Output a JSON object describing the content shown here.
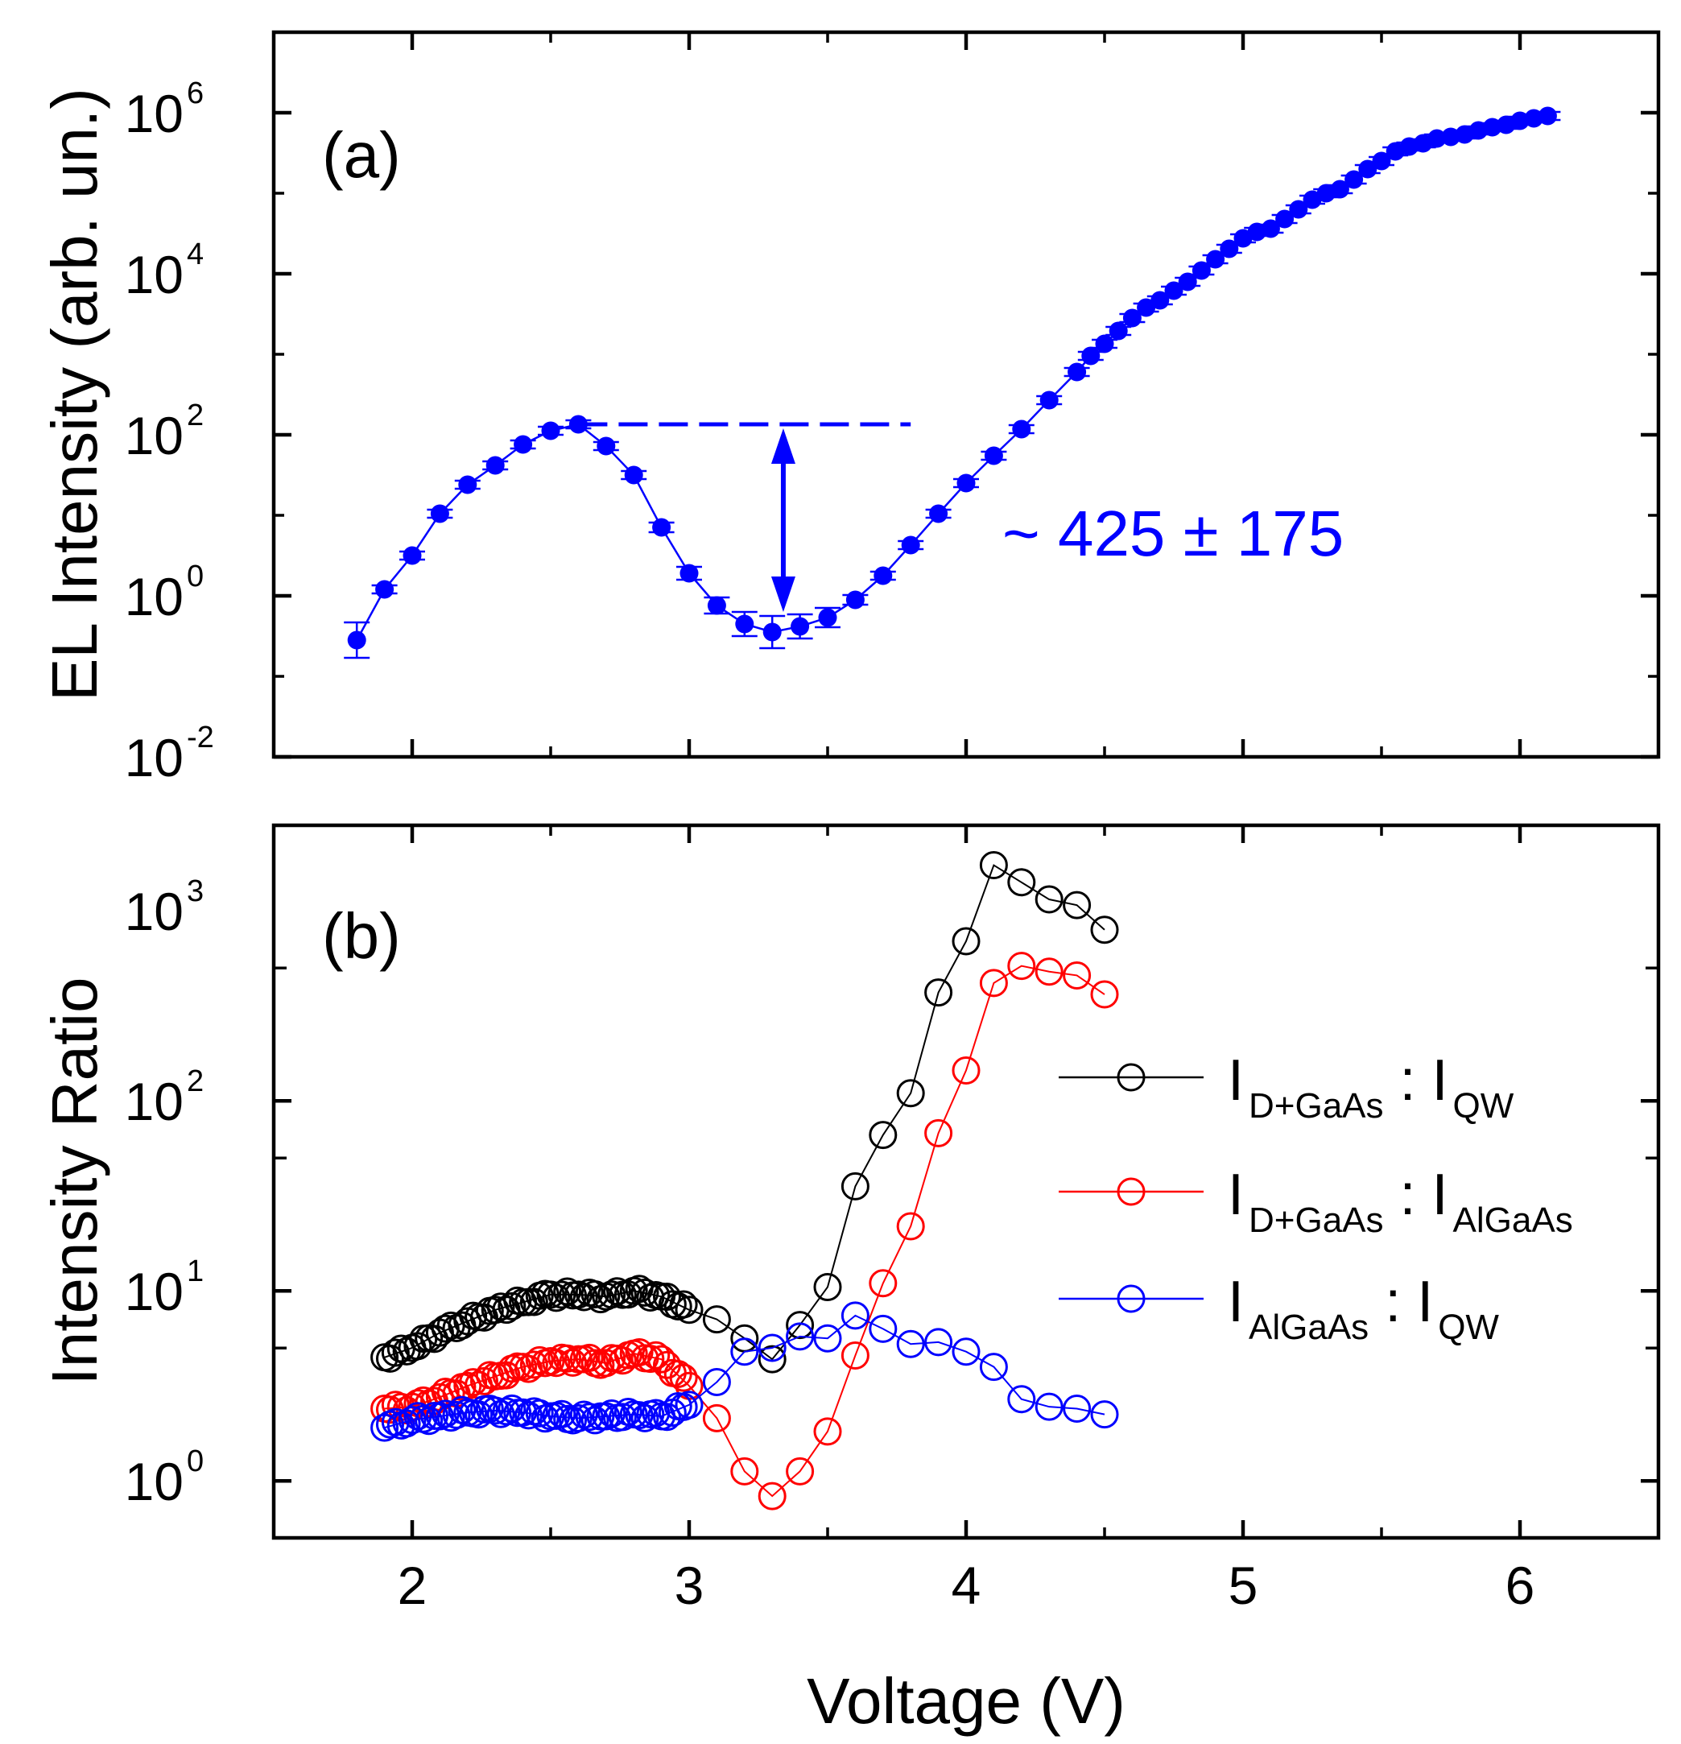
{
  "chart_data": [
    {
      "panel_label": "(a)",
      "type": "line",
      "ylabel": "EL Intensity (arb. un.)",
      "xlabel": "",
      "xlim": [
        1.5,
        6.5
      ],
      "ylim_log10": [
        -2,
        7
      ],
      "yscale": "log",
      "x_ticks": [
        2,
        3,
        4,
        5,
        6
      ],
      "y_ticks": [
        {
          "base": "10",
          "exp": "6",
          "value": 6
        },
        {
          "base": "10",
          "exp": "4",
          "value": 4
        },
        {
          "base": "10",
          "exp": "2",
          "value": 2
        },
        {
          "base": "10",
          "exp": "0",
          "value": 0
        },
        {
          "base": "10",
          "exp": "-2",
          "value": -2
        }
      ],
      "color": "#0000ff",
      "annotation_text": "~ 425 ± 175",
      "reference_line": {
        "x_start": 2.6,
        "x_end": 3.8,
        "log_y": 2.13
      },
      "arrow": {
        "x": 3.34,
        "log_y_top": 2.08,
        "log_y_bottom": -0.2
      },
      "series": [
        {
          "name": "EL",
          "x": [
            1.8,
            1.9,
            2.0,
            2.1,
            2.2,
            2.3,
            2.4,
            2.5,
            2.6,
            2.7,
            2.8,
            2.9,
            3.0,
            3.1,
            3.2,
            3.3,
            3.4,
            3.5,
            3.6,
            3.7,
            3.8,
            3.9,
            4.0,
            4.1,
            4.2,
            4.3,
            4.4,
            4.45,
            4.5,
            4.55,
            4.6,
            4.65,
            4.7,
            4.75,
            4.8,
            4.85,
            4.9,
            4.95,
            5.0,
            5.05,
            5.1,
            5.15,
            5.2,
            5.25,
            5.3,
            5.35,
            5.4,
            5.45,
            5.5,
            5.55,
            5.6,
            5.65,
            5.7,
            5.75,
            5.8,
            5.85,
            5.9,
            5.95,
            6.0,
            6.05,
            6.1
          ],
          "log10_y": [
            -0.55,
            0.08,
            0.5,
            1.02,
            1.38,
            1.62,
            1.88,
            2.05,
            2.13,
            1.86,
            1.5,
            0.85,
            0.28,
            -0.12,
            -0.35,
            -0.45,
            -0.38,
            -0.27,
            -0.05,
            0.25,
            0.63,
            1.02,
            1.4,
            1.74,
            2.07,
            2.43,
            2.78,
            2.98,
            3.13,
            3.29,
            3.45,
            3.58,
            3.67,
            3.79,
            3.9,
            4.04,
            4.18,
            4.31,
            4.44,
            4.52,
            4.56,
            4.68,
            4.8,
            4.92,
            5.0,
            5.05,
            5.17,
            5.3,
            5.4,
            5.52,
            5.58,
            5.62,
            5.68,
            5.7,
            5.73,
            5.78,
            5.82,
            5.85,
            5.9,
            5.93,
            5.96
          ],
          "log10_err": [
            0.22,
            0.05,
            0.05,
            0.05,
            0.05,
            0.05,
            0.05,
            0.05,
            0.05,
            0.05,
            0.05,
            0.06,
            0.08,
            0.1,
            0.15,
            0.2,
            0.15,
            0.12,
            0.06,
            0.05,
            0.05,
            0.05,
            0.05,
            0.05,
            0.05,
            0.05,
            0.05,
            0.05,
            0.05,
            0.05,
            0.05,
            0.05,
            0.05,
            0.05,
            0.05,
            0.05,
            0.05,
            0.05,
            0.05,
            0.05,
            0.05,
            0.05,
            0.05,
            0.05,
            0.05,
            0.05,
            0.05,
            0.05,
            0.05,
            0.05,
            0.05,
            0.05,
            0.05,
            0.05,
            0.05,
            0.05,
            0.05,
            0.05,
            0.05,
            0.05,
            0.05
          ]
        }
      ]
    },
    {
      "panel_label": "(b)",
      "type": "line",
      "ylabel": "Intensity Ratio",
      "xlabel": "Voltage (V)",
      "xlim": [
        1.5,
        6.5
      ],
      "ylim_log10": [
        -0.3,
        3.45
      ],
      "yscale": "log",
      "x_ticks": [
        2,
        3,
        4,
        5,
        6
      ],
      "x_tick_labels": [
        "2",
        "3",
        "4",
        "5",
        "6"
      ],
      "y_ticks": [
        {
          "base": "10",
          "exp": "3",
          "value": 3
        },
        {
          "base": "10",
          "exp": "2",
          "value": 2
        },
        {
          "base": "10",
          "exp": "1",
          "value": 1
        },
        {
          "base": "10",
          "exp": "0",
          "value": 0
        }
      ],
      "legend_position": "right",
      "series": [
        {
          "name_main": "I",
          "name_sub1": "D+GaAs",
          "name_sep": " : I",
          "name_sub2": "QW",
          "color": "#000000",
          "x": [
            1.9,
            2.0,
            2.1,
            2.2,
            2.3,
            2.4,
            2.5,
            2.6,
            2.7,
            2.8,
            2.9,
            3.0,
            3.1,
            3.2,
            3.3,
            3.4,
            3.5,
            3.6,
            3.7,
            3.8,
            3.9,
            4.0,
            4.1,
            4.2,
            4.3,
            4.4,
            4.5
          ],
          "log10_y": [
            0.65,
            0.7,
            0.78,
            0.84,
            0.9,
            0.94,
            0.98,
            0.98,
            0.97,
            1.0,
            0.97,
            0.9,
            0.85,
            0.75,
            0.64,
            0.82,
            1.02,
            1.55,
            1.82,
            2.04,
            2.57,
            2.84,
            3.24,
            3.15,
            3.06,
            3.03,
            2.9
          ]
        },
        {
          "name_main": "I",
          "name_sub1": "D+GaAs",
          "name_sep": " : I",
          "name_sub2": "AlGaAs",
          "color": "#ff0000",
          "x": [
            1.9,
            2.0,
            2.1,
            2.2,
            2.3,
            2.4,
            2.5,
            2.6,
            2.7,
            2.8,
            2.9,
            3.0,
            3.1,
            3.2,
            3.3,
            3.4,
            3.5,
            3.6,
            3.7,
            3.8,
            3.9,
            4.0,
            4.1,
            4.2,
            4.3,
            4.4,
            4.5
          ],
          "log10_y": [
            0.38,
            0.39,
            0.44,
            0.5,
            0.55,
            0.6,
            0.63,
            0.64,
            0.62,
            0.67,
            0.64,
            0.5,
            0.33,
            0.05,
            -0.08,
            0.05,
            0.26,
            0.66,
            1.04,
            1.34,
            1.83,
            2.16,
            2.62,
            2.71,
            2.68,
            2.66,
            2.56
          ]
        },
        {
          "name_main": "I",
          "name_sub1": "AlGaAs",
          "name_sep": " : I",
          "name_sub2": "QW",
          "color": "#0000ff",
          "x": [
            1.9,
            2.0,
            2.1,
            2.2,
            2.3,
            2.4,
            2.5,
            2.6,
            2.7,
            2.8,
            2.9,
            3.0,
            3.1,
            3.2,
            3.3,
            3.4,
            3.5,
            3.6,
            3.7,
            3.8,
            3.9,
            4.0,
            4.1,
            4.2,
            4.3,
            4.4,
            4.5
          ],
          "log10_y": [
            0.28,
            0.32,
            0.34,
            0.36,
            0.37,
            0.36,
            0.34,
            0.33,
            0.34,
            0.35,
            0.34,
            0.4,
            0.52,
            0.68,
            0.7,
            0.76,
            0.75,
            0.87,
            0.8,
            0.72,
            0.73,
            0.68,
            0.6,
            0.43,
            0.39,
            0.38,
            0.35
          ]
        }
      ]
    }
  ]
}
